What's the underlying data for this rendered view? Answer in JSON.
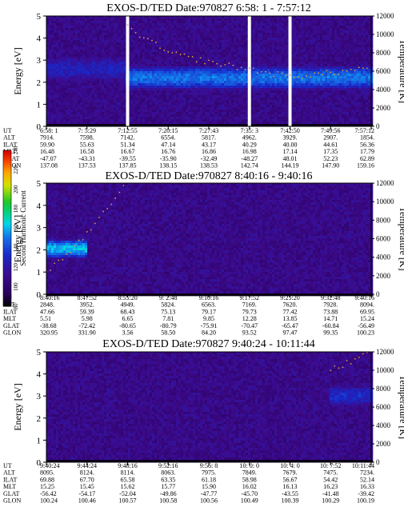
{
  "figure": {
    "panels": [
      {
        "title": "EXOS-D/TED   Date:970827  6:58: 1 - 7:57:12",
        "ylabel_left": "Energy [eV]",
        "ylabel_right": "Temperature [K]",
        "rows": [
          {
            "label": "UT",
            "values": [
              "6:58: 1",
              "7: 5:29",
              "7:12:55",
              "7:20:15",
              "7:27:43",
              "7:35: 3",
              "7:42:50",
              "7:49:56",
              "7:57:12"
            ]
          },
          {
            "label": "ALT",
            "values": [
              "7914.",
              "7598.",
              "7142.",
              "6554.",
              "5817.",
              "4962.",
              "3929.",
              "2907.",
              "1854."
            ]
          },
          {
            "label": "ILAT",
            "values": [
              "59.90",
              "55.63",
              "51.34",
              "47.14",
              "43.17",
              "40.29",
              "40.00",
              "44.61",
              "56.36"
            ]
          },
          {
            "label": "MLT",
            "values": [
              "16.48",
              "16.58",
              "16.67",
              "16.76",
              "16.86",
              "16.98",
              "17.14",
              "17.35",
              "17.79"
            ]
          },
          {
            "label": "GLAT",
            "values": [
              "-47.07",
              "-43.31",
              "-39.55",
              "-35.90",
              "-32.49",
              "-48.27",
              "48.01",
              "52.23",
              "62.89"
            ]
          },
          {
            "label": "GLON",
            "values": [
              "137.08",
              "137.53",
              "137.85",
              "138.15",
              "138.53",
              "142.74",
              "144.19",
              "147.90",
              "159.16"
            ]
          }
        ]
      },
      {
        "title": "EXOS-D/TED   Date:970827  8:40:16 - 9:40:16",
        "ylabel_left": "Energy [eV]",
        "ylabel_right": "Temperature [K]",
        "rows": [
          {
            "label": "UT",
            "values": [
              "8:40:16",
              "8:47:52",
              "8:55:20",
              "9: 2:48",
              "9:10:16",
              "9:17:52",
              "9:25:20",
              "9:32:48",
              "9:40:16"
            ]
          },
          {
            "label": "ALT",
            "values": [
              "2848.",
              "3952.",
              "4949.",
              "5824.",
              "6563.",
              "7169.",
              "7620.",
              "7928.",
              "8094."
            ]
          },
          {
            "label": "ILAT",
            "values": [
              "47.66",
              "59.39",
              "68.43",
              "75.13",
              "79.17",
              "79.73",
              "77.42",
              "73.88",
              "69.95"
            ]
          },
          {
            "label": "MLT",
            "values": [
              "5.51",
              "5.98",
              "6.65",
              "7.81",
              "9.85",
              "12.28",
              "13.85",
              "14.71",
              "15.24"
            ]
          },
          {
            "label": "GLAT",
            "values": [
              "-38.68",
              "-72.42",
              "-80.65",
              "-80.79",
              "-75.91",
              "-70.47",
              "-65.47",
              "-60.84",
              "-56.49"
            ]
          },
          {
            "label": "GLON",
            "values": [
              "320.95",
              "331.90",
              "3.56",
              "58.50",
              "84.20",
              "93.52",
              "97.47",
              "99.35",
              "100.23"
            ]
          }
        ]
      },
      {
        "title": "EXOS-D/TED   Date:970827  9:40:24 - 10:11:44",
        "ylabel_left": "Energy [eV]",
        "ylabel_right": "Temperature [K]",
        "rows": [
          {
            "label": "UT",
            "values": [
              "9:40:24",
              "9:44:24",
              "9:48:16",
              "9:52:16",
              "9:56: 8",
              "10: 0: 0",
              "10: 4: 0",
              "10: 7:52",
              "10:11:44"
            ]
          },
          {
            "label": "ALT",
            "values": [
              "8095.",
              "8124.",
              "8114.",
              "8063.",
              "7975.",
              "7849.",
              "7679.",
              "7475.",
              "7234."
            ]
          },
          {
            "label": "ILAT",
            "values": [
              "69.88",
              "67.70",
              "65.58",
              "63.35",
              "61.18",
              "58.98",
              "56.67",
              "54.42",
              "52.14"
            ]
          },
          {
            "label": "MLT",
            "values": [
              "15.25",
              "15.45",
              "15.62",
              "15.77",
              "15.90",
              "16.02",
              "16.13",
              "16.23",
              "16.33"
            ]
          },
          {
            "label": "GLAT",
            "values": [
              "-56.42",
              "-54.17",
              "-52.04",
              "-49.86",
              "-47.77",
              "-45.70",
              "-43.55",
              "-41.48",
              "-39.42"
            ]
          },
          {
            "label": "GLON",
            "values": [
              "100.24",
              "100.46",
              "100.57",
              "100.58",
              "100.56",
              "100.49",
              "100.39",
              "100.29",
              "100.19"
            ]
          }
        ]
      }
    ],
    "colorbar": {
      "label": "Second Harmonic Current",
      "ticks": [
        "80",
        "100",
        "120",
        "140",
        "160",
        "180",
        "200",
        "220",
        "240"
      ]
    }
  },
  "chart_data": [
    {
      "type": "heatmap",
      "title": "EXOS-D/TED   Date:970827  6:58: 1 - 7:57:12",
      "xlabel": "",
      "ylabel": "Energy [eV]",
      "y2label": "Temperature [K]",
      "x_categories": [
        "6:58: 1",
        "7: 5:29",
        "7:12:55",
        "7:20:15",
        "7:27:43",
        "7:35: 3",
        "7:42:50",
        "7:49:56",
        "7:57:12"
      ],
      "ylim": [
        0,
        5
      ],
      "yticks": [
        0,
        1,
        2,
        3,
        4,
        5
      ],
      "y2lim": [
        0,
        12000
      ],
      "y2ticks": [
        0,
        2000,
        4000,
        6000,
        8000,
        10000,
        12000
      ],
      "colorscale": {
        "label": "Second Harmonic Current",
        "range": [
          80,
          240
        ]
      },
      "features": [
        {
          "kind": "band",
          "x_range": [
            "7:12:55",
            "7:57:12"
          ],
          "energy_center_eV": 2.2,
          "energy_halfwidth_eV": 0.55,
          "level": 150
        },
        {
          "kind": "band",
          "x_range": [
            "6:58: 1",
            "7:12:55"
          ],
          "energy_center_eV": 2.6,
          "energy_halfwidth_eV": 0.5,
          "level": 128
        },
        {
          "kind": "data_gap",
          "x": "7:12:55"
        },
        {
          "kind": "data_gap",
          "x": "7:35: 3"
        },
        {
          "kind": "data_gap",
          "x": "7:42:50"
        }
      ],
      "temperature_trace_K": [
        {
          "x": "7:12:55",
          "y": 10800
        },
        {
          "x": "7:20:15",
          "y": 8000
        },
        {
          "x": "7:27:43",
          "y": 7000
        },
        {
          "x": "7:35: 3",
          "y": 6200
        },
        {
          "x": "7:42:50",
          "y": 5400
        },
        {
          "x": "7:49:56",
          "y": 5800
        },
        {
          "x": "7:57:12",
          "y": 6400
        }
      ]
    },
    {
      "type": "heatmap",
      "title": "EXOS-D/TED   Date:970827  8:40:16 - 9:40:16",
      "xlabel": "",
      "ylabel": "Energy [eV]",
      "y2label": "Temperature [K]",
      "x_categories": [
        "8:40:16",
        "8:47:52",
        "8:55:20",
        "9: 2:48",
        "9:10:16",
        "9:17:52",
        "9:25:20",
        "9:32:48",
        "9:40:16"
      ],
      "ylim": [
        0,
        5
      ],
      "yticks": [
        0,
        1,
        2,
        3,
        4,
        5
      ],
      "y2lim": [
        0,
        12000
      ],
      "y2ticks": [
        0,
        2000,
        4000,
        6000,
        8000,
        10000,
        12000
      ],
      "colorscale": {
        "label": "Second Harmonic Current",
        "range": [
          80,
          240
        ]
      },
      "features": [
        {
          "kind": "band",
          "x_range": [
            "8:40:16",
            "8:47:52"
          ],
          "energy_center_eV": 2.05,
          "energy_halfwidth_eV": 0.45,
          "level": 162
        }
      ],
      "temperature_trace_K": [
        {
          "x": "8:40:16",
          "y": 2200
        },
        {
          "x": "8:47:52",
          "y": 6500
        },
        {
          "x": "8:55:20",
          "y": 12000
        }
      ]
    },
    {
      "type": "heatmap",
      "title": "EXOS-D/TED   Date:970827  9:40:24 - 10:11:44",
      "xlabel": "",
      "ylabel": "Energy [eV]",
      "y2label": "Temperature [K]",
      "x_categories": [
        "9:40:24",
        "9:44:24",
        "9:48:16",
        "9:52:16",
        "9:56: 8",
        "10: 0: 0",
        "10: 4: 0",
        "10: 7:52",
        "10:11:44"
      ],
      "ylim": [
        0,
        5
      ],
      "yticks": [
        0,
        1,
        2,
        3,
        4,
        5
      ],
      "y2lim": [
        0,
        12000
      ],
      "y2ticks": [
        0,
        2000,
        4000,
        6000,
        8000,
        10000,
        12000
      ],
      "colorscale": {
        "label": "Second Harmonic Current",
        "range": [
          80,
          240
        ]
      },
      "features": [
        {
          "kind": "band",
          "x_range": [
            "10: 7:52",
            "10:11:44"
          ],
          "energy_center_eV": 3.0,
          "energy_halfwidth_eV": 0.45,
          "level": 132
        }
      ],
      "temperature_trace_K": [
        {
          "x": "10: 7:52",
          "y": 10000
        },
        {
          "x": "10:11:44",
          "y": 12000
        }
      ]
    }
  ]
}
